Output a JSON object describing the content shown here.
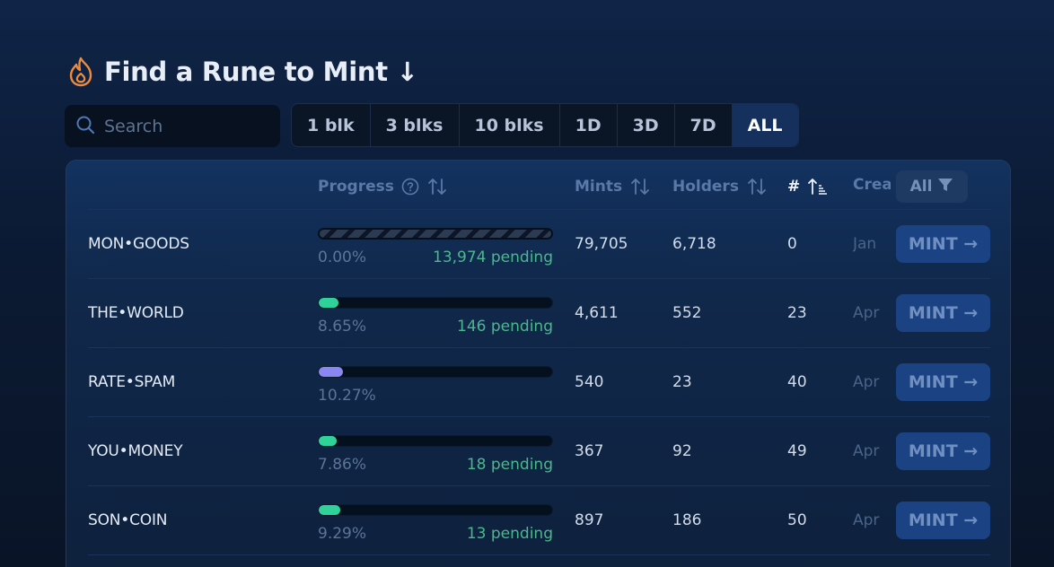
{
  "header": {
    "title": "Find a Rune to Mint ↓",
    "icon": "fire-icon"
  },
  "search": {
    "placeholder": "Search",
    "value": ""
  },
  "time_filters": [
    {
      "label": "1 blk",
      "active": false
    },
    {
      "label": "3 blks",
      "active": false
    },
    {
      "label": "10 blks",
      "active": false
    },
    {
      "label": "1D",
      "active": false
    },
    {
      "label": "3D",
      "active": false
    },
    {
      "label": "7D",
      "active": false
    },
    {
      "label": "ALL",
      "active": true
    }
  ],
  "table": {
    "columns": {
      "progress": "Progress",
      "mints": "Mints",
      "holders": "Holders",
      "number": "#",
      "created": "Created"
    },
    "all_filter_label": "All",
    "mint_label": "MINT →",
    "rows": [
      {
        "name": "MON•GOODS",
        "progress_text": "0.00%",
        "progress": 0.0,
        "pending": "13,974 pending",
        "mints": "79,705",
        "holders": "6,718",
        "number": "0",
        "created": "Jan",
        "bar_color": "#2fd39a",
        "striped": true
      },
      {
        "name": "THE•WORLD",
        "progress_text": "8.65%",
        "progress": 8.65,
        "pending": "146 pending",
        "mints": "4,611",
        "holders": "552",
        "number": "23",
        "created": "Apr",
        "bar_color": "#2fd39a",
        "striped": false
      },
      {
        "name": "RATE•SPAM",
        "progress_text": "10.27%",
        "progress": 10.27,
        "pending": "",
        "mints": "540",
        "holders": "23",
        "number": "40",
        "created": "Apr",
        "bar_color": "#8a86f2",
        "striped": false
      },
      {
        "name": "YOU•MONEY",
        "progress_text": "7.86%",
        "progress": 7.86,
        "pending": "18 pending",
        "mints": "367",
        "holders": "92",
        "number": "49",
        "created": "Apr",
        "bar_color": "#2fd39a",
        "striped": false
      },
      {
        "name": "SON•COIN",
        "progress_text": "9.29%",
        "progress": 9.29,
        "pending": "13 pending",
        "mints": "897",
        "holders": "186",
        "number": "50",
        "created": "Apr",
        "bar_color": "#2fd39a",
        "striped": false
      }
    ]
  },
  "colors": {
    "accent": "#1b4383",
    "fire": "#f08a3c",
    "pending": "#4bb88c",
    "active_filter": "#15305c"
  }
}
